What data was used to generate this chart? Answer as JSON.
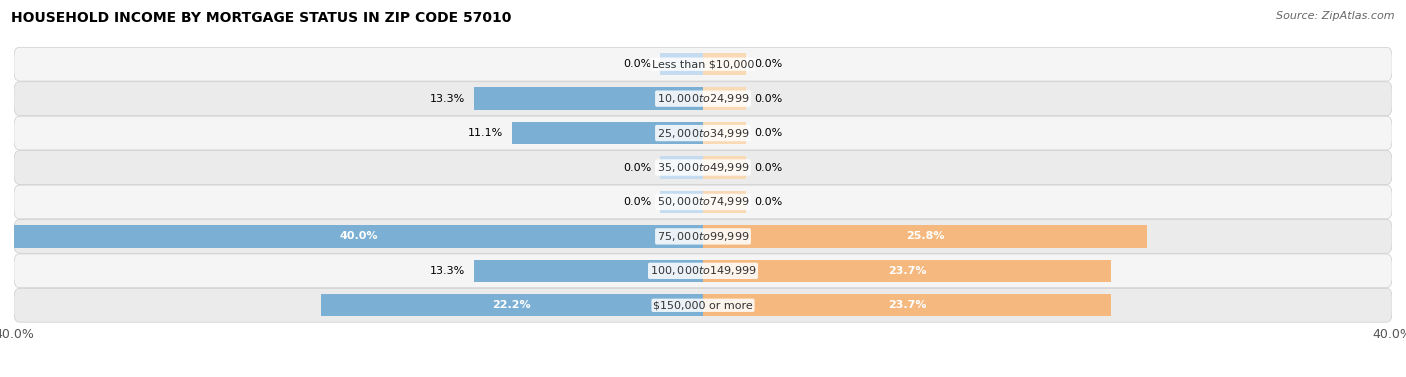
{
  "title": "HOUSEHOLD INCOME BY MORTGAGE STATUS IN ZIP CODE 57010",
  "source": "Source: ZipAtlas.com",
  "categories": [
    "Less than $10,000",
    "$10,000 to $24,999",
    "$25,000 to $34,999",
    "$35,000 to $49,999",
    "$50,000 to $74,999",
    "$75,000 to $99,999",
    "$100,000 to $149,999",
    "$150,000 or more"
  ],
  "without_mortgage": [
    0.0,
    13.3,
    11.1,
    0.0,
    0.0,
    40.0,
    13.3,
    22.2
  ],
  "with_mortgage": [
    0.0,
    0.0,
    0.0,
    0.0,
    0.0,
    25.8,
    23.7,
    23.7
  ],
  "color_without": "#7BAFD4",
  "color_with": "#F5B97F",
  "color_without_light": "#C5DCF0",
  "color_with_light": "#FAD9B5",
  "xlim": 40.0,
  "min_bar_stub": 2.5,
  "title_fontsize": 10,
  "source_fontsize": 8,
  "label_fontsize": 8,
  "category_fontsize": 8,
  "legend_fontsize": 9,
  "axis_fontsize": 9
}
